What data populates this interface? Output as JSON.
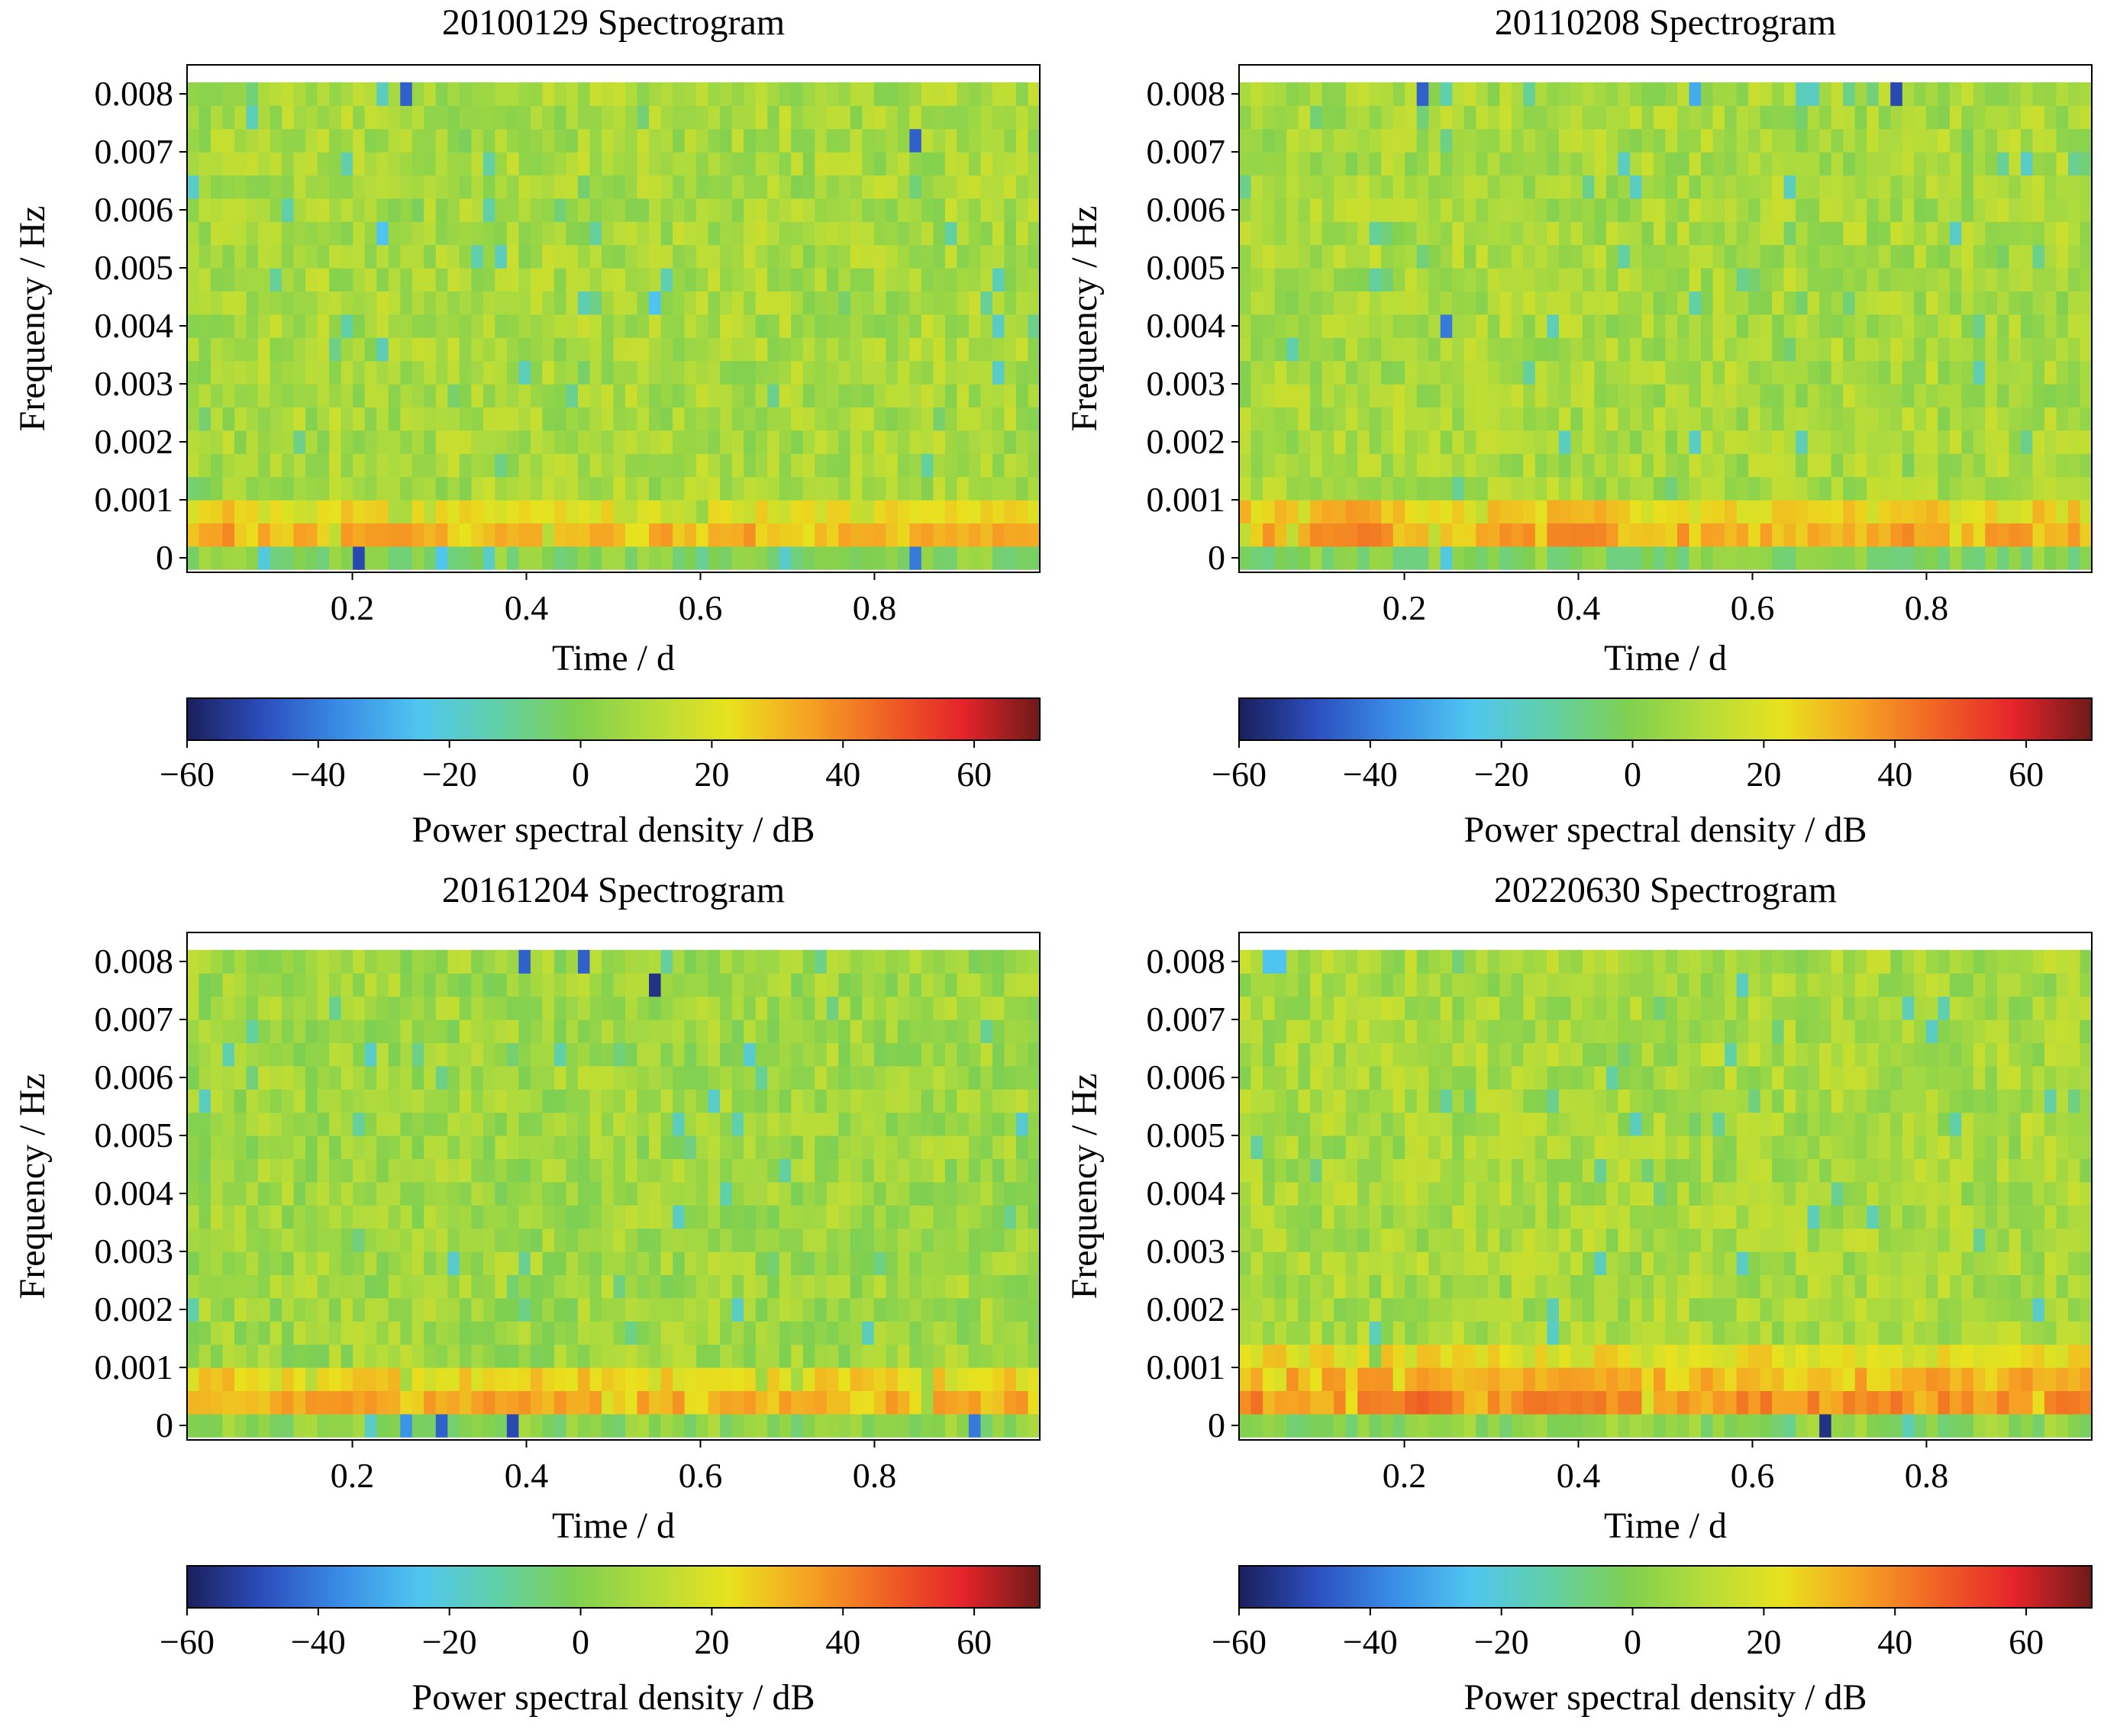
{
  "colorbar": {
    "min": -60,
    "max": 70,
    "ticks": [
      "−60",
      "−40",
      "−20",
      "0",
      "20",
      "40",
      "60"
    ],
    "tick_values": [
      -60,
      -40,
      -20,
      0,
      20,
      40,
      60
    ],
    "label": "Power spectral density / dB",
    "colormap": "turbo-like",
    "stops": [
      "#1a1f5c",
      "#2c4fbf",
      "#3a8ee6",
      "#4fc6f0",
      "#61d0a7",
      "#7fd051",
      "#b5dc3a",
      "#e8e21e",
      "#f6a323",
      "#f06324",
      "#e5242a",
      "#6e1a19"
    ]
  },
  "chart_data": [
    {
      "type": "heatmap",
      "title": "20100129 Spectrogram",
      "xlabel": "Time / d",
      "ylabel": "Frequency / Hz",
      "xlim": [
        0.01,
        0.99
      ],
      "ylim": [
        -0.00025,
        0.0085
      ],
      "x_ticks": [
        "0.2",
        "0.4",
        "0.6",
        "0.8"
      ],
      "x_tick_values": [
        0.2,
        0.4,
        0.6,
        0.8
      ],
      "y_ticks": [
        "0",
        "0.001",
        "0.002",
        "0.003",
        "0.004",
        "0.005",
        "0.006",
        "0.007",
        "0.008"
      ],
      "y_tick_values": [
        0,
        0.001,
        0.002,
        0.003,
        0.004,
        0.005,
        0.006,
        0.007,
        0.008
      ],
      "n_time_bins": 72,
      "n_freq_bins": 21,
      "freq_step_hz": 0.0004,
      "background_db": 8,
      "band_db": {
        "0": 0,
        "1": 30,
        "2": 20
      },
      "hot_segments": [
        [
          0.03,
          0.06,
          36
        ],
        [
          0.19,
          0.27,
          34
        ],
        [
          0.34,
          0.5,
          30
        ],
        [
          0.84,
          0.99,
          32
        ]
      ],
      "low_spots": [
        [
          0.26,
          20,
          -45
        ],
        [
          0.85,
          18,
          -45
        ],
        [
          0.21,
          0,
          -50
        ],
        [
          0.85,
          0,
          -40
        ],
        [
          0.55,
          11,
          -25
        ],
        [
          0.24,
          14,
          -25
        ]
      ],
      "seed": 101
    },
    {
      "type": "heatmap",
      "title": "20110208 Spectrogram",
      "xlabel": "Time / d",
      "ylabel": "Frequency / Hz",
      "xlim": [
        0.01,
        0.99
      ],
      "ylim": [
        -0.00025,
        0.0085
      ],
      "x_ticks": [
        "0.2",
        "0.4",
        "0.6",
        "0.8"
      ],
      "x_tick_values": [
        0.2,
        0.4,
        0.6,
        0.8
      ],
      "y_ticks": [
        "0",
        "0.001",
        "0.002",
        "0.003",
        "0.004",
        "0.005",
        "0.006",
        "0.007",
        "0.008"
      ],
      "y_tick_values": [
        0,
        0.001,
        0.002,
        0.003,
        0.004,
        0.005,
        0.006,
        0.007,
        0.008
      ],
      "n_time_bins": 72,
      "n_freq_bins": 21,
      "freq_step_hz": 0.0004,
      "background_db": 8,
      "band_db": {
        "0": 0,
        "1": 32,
        "2": 24
      },
      "hot_segments": [
        [
          0.09,
          0.18,
          42
        ],
        [
          0.28,
          0.34,
          36
        ],
        [
          0.37,
          0.45,
          38
        ],
        [
          0.75,
          0.83,
          34
        ]
      ],
      "low_spots": [
        [
          0.22,
          20,
          -45
        ],
        [
          0.77,
          20,
          -50
        ],
        [
          0.25,
          10,
          -40
        ],
        [
          0.53,
          20,
          -30
        ]
      ],
      "seed": 202
    },
    {
      "type": "heatmap",
      "title": "20161204 Spectrogram",
      "xlabel": "Time / d",
      "ylabel": "Frequency / Hz",
      "xlim": [
        0.01,
        0.99
      ],
      "ylim": [
        -0.00025,
        0.0085
      ],
      "x_ticks": [
        "0.2",
        "0.4",
        "0.6",
        "0.8"
      ],
      "x_tick_values": [
        0.2,
        0.4,
        0.6,
        0.8
      ],
      "y_ticks": [
        "0",
        "0.001",
        "0.002",
        "0.003",
        "0.004",
        "0.005",
        "0.006",
        "0.007",
        "0.008"
      ],
      "y_tick_values": [
        0,
        0.001,
        0.002,
        0.003,
        0.004,
        0.005,
        0.006,
        0.007,
        0.008
      ],
      "n_time_bins": 72,
      "n_freq_bins": 21,
      "freq_step_hz": 0.0004,
      "background_db": 6,
      "band_db": {
        "0": 2,
        "1": 30,
        "2": 24
      },
      "hot_segments": [
        [
          0.12,
          0.25,
          34
        ],
        [
          0.37,
          0.5,
          32
        ],
        [
          0.61,
          0.72,
          30
        ]
      ],
      "low_spots": [
        [
          0.4,
          20,
          -45
        ],
        [
          0.47,
          20,
          -45
        ],
        [
          0.55,
          19,
          -55
        ],
        [
          0.3,
          0,
          -45
        ],
        [
          0.38,
          0,
          -50
        ],
        [
          0.91,
          0,
          -40
        ],
        [
          0.26,
          0,
          -35
        ]
      ],
      "seed": 303
    },
    {
      "type": "heatmap",
      "title": "20220630 Spectrogram",
      "xlabel": "Time / d",
      "ylabel": "Frequency / Hz",
      "xlim": [
        0.01,
        0.99
      ],
      "ylim": [
        -0.00025,
        0.0085
      ],
      "x_ticks": [
        "0.2",
        "0.4",
        "0.6",
        "0.8"
      ],
      "x_tick_values": [
        0.2,
        0.4,
        0.6,
        0.8
      ],
      "y_ticks": [
        "0",
        "0.001",
        "0.002",
        "0.003",
        "0.004",
        "0.005",
        "0.006",
        "0.007",
        "0.008"
      ],
      "y_tick_values": [
        0,
        0.001,
        0.002,
        0.003,
        0.004,
        0.005,
        0.006,
        0.007,
        0.008
      ],
      "n_time_bins": 72,
      "n_freq_bins": 21,
      "freq_step_hz": 0.0004,
      "background_db": 8,
      "band_db": {
        "0": 2,
        "1": 36,
        "2": 30,
        "3": 22
      },
      "hot_segments": [
        [
          0.15,
          0.26,
          44
        ],
        [
          0.33,
          0.47,
          40
        ],
        [
          0.92,
          0.99,
          40
        ]
      ],
      "low_spots": [
        [
          0.68,
          0,
          -55
        ],
        [
          0.05,
          20,
          -25
        ]
      ],
      "seed": 404
    }
  ]
}
